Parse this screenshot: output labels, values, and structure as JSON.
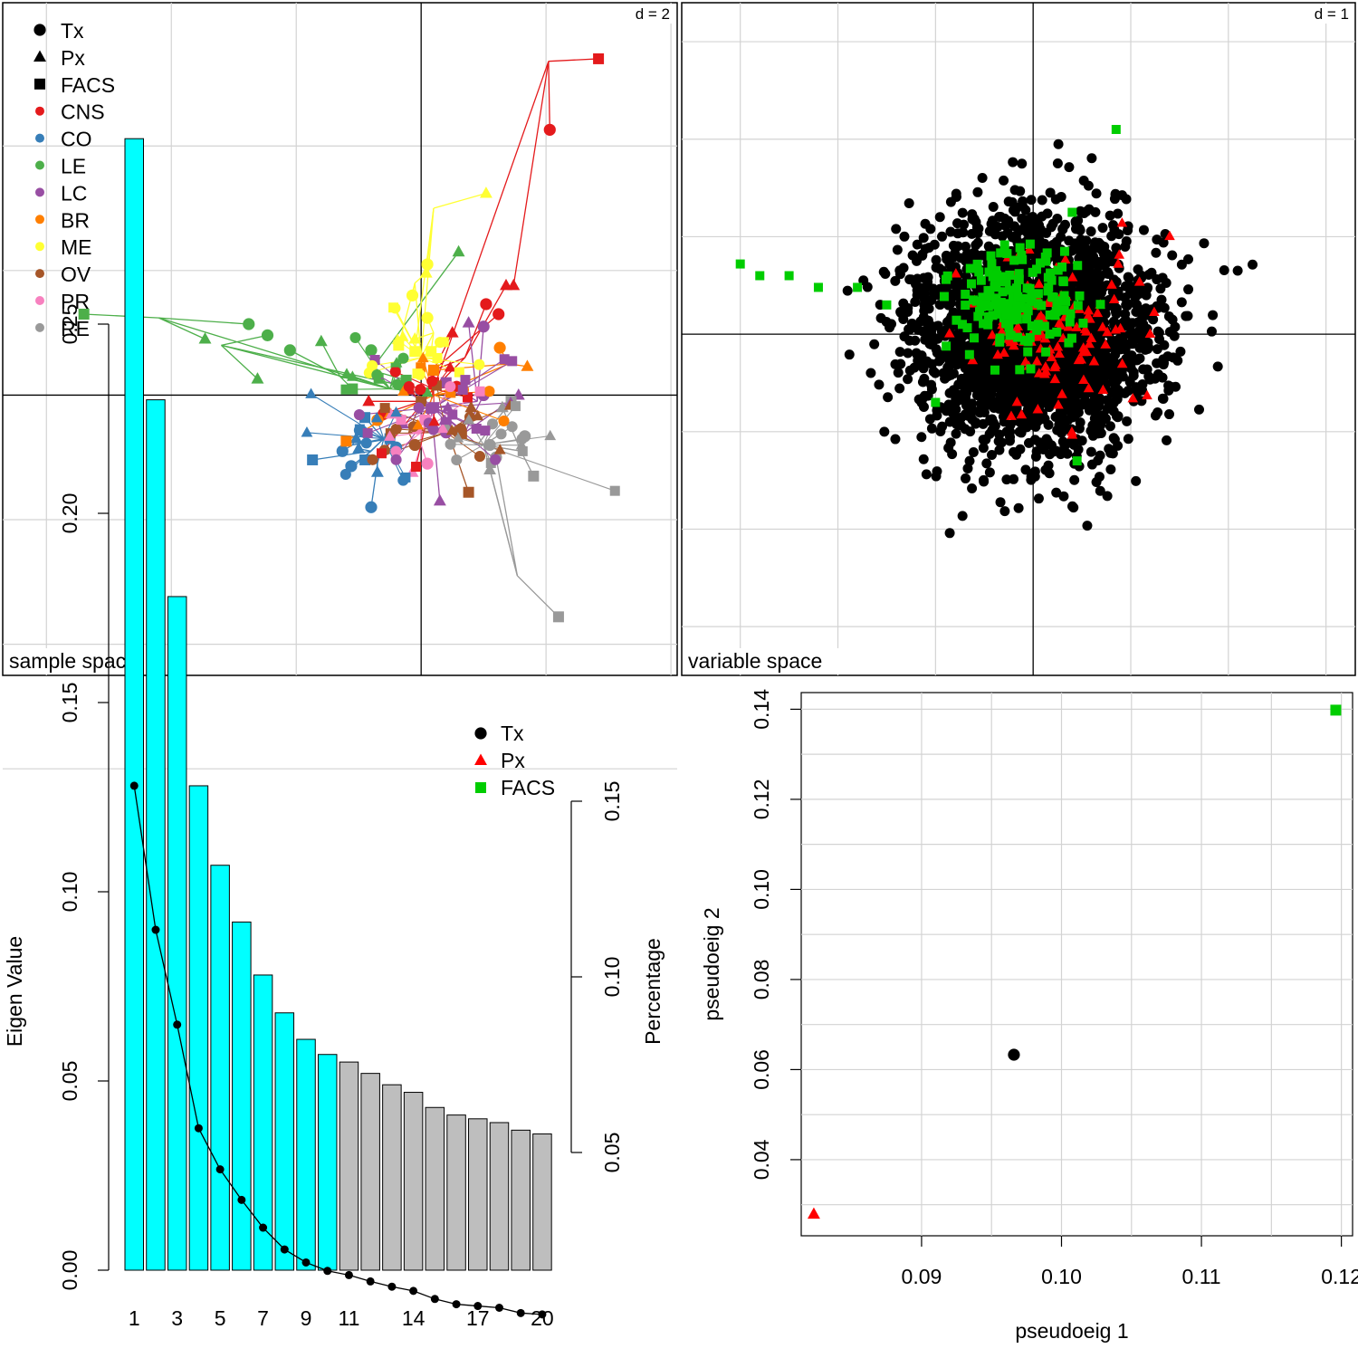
{
  "chart_data": [
    {
      "type": "scatter",
      "panel_label": "sample space",
      "scale_label": "d = 2",
      "grid": true,
      "x_range": [
        -3.35,
        2.05
      ],
      "y_range": [
        -2.25,
        3.15
      ],
      "gridlines": [
        -3,
        -2,
        -1,
        1,
        2
      ],
      "legend_placement": "top-left",
      "legend": {
        "shapes": [
          {
            "label": "Tx",
            "shape": "circle"
          },
          {
            "label": "Px",
            "shape": "triangle"
          },
          {
            "label": "FACS",
            "shape": "square"
          }
        ],
        "groups": [
          {
            "label": "CNS",
            "color": "#e41a1c"
          },
          {
            "label": "CO",
            "color": "#377eb8"
          },
          {
            "label": "LE",
            "color": "#4daf4a"
          },
          {
            "label": "LC",
            "color": "#984ea3"
          },
          {
            "label": "BR",
            "color": "#ff7f00"
          },
          {
            "label": "ME",
            "color": "#ffff33"
          },
          {
            "label": "OV",
            "color": "#a65628"
          },
          {
            "label": "PR",
            "color": "#f781bf"
          },
          {
            "label": "RE",
            "color": "#999999"
          }
        ]
      },
      "clusters": [
        {
          "group": "CNS",
          "color": "#e41a1c",
          "center": [
            0.1,
            0.05
          ],
          "points": [
            {
              "center": [
                1.02,
                2.68
              ],
              "tx": [
                1.03,
                2.13
              ],
              "px": [
                0.74,
                0.88
              ],
              "facs": [
                1.42,
                2.7
              ]
            },
            {
              "center": [
                0.35,
                0.3
              ],
              "tx": [
                0.52,
                0.73
              ],
              "px": [
                0.68,
                0.88
              ],
              "facs": [
                0.1,
                0.2
              ]
            },
            {
              "center": [
                0.1,
                0.2
              ],
              "tx": [
                0.62,
                0.65
              ],
              "px": [
                0.25,
                0.5
              ],
              "facs": [
                0.1,
                0.1
              ]
            },
            {
              "center": [
                0.0,
                -0.05
              ],
              "tx": [
                -0.3,
                -0.15
              ],
              "px": [
                -0.42,
                -0.05
              ],
              "facs": [
                -0.1,
                0.05
              ]
            }
          ]
        },
        {
          "group": "CO",
          "color": "#377eb8",
          "center": [
            -0.3,
            -0.35
          ],
          "points": [
            {
              "center": [
                -0.4,
                -0.45
              ],
              "tx": [
                -0.56,
                -0.57
              ],
              "px": [
                -0.5,
                -0.43
              ],
              "facs": [
                -0.87,
                -0.52
              ]
            },
            {
              "center": [
                -0.35,
                -0.55
              ],
              "tx": [
                -0.4,
                -0.9
              ],
              "px": [
                -0.35,
                -0.62
              ],
              "facs": [
                -0.45,
                -0.52
              ]
            },
            {
              "center": [
                -0.3,
                -0.35
              ],
              "tx": [
                -0.2,
                -0.42
              ],
              "px": [
                -0.45,
                -0.3
              ],
              "facs": [
                -0.45,
                -0.18
              ]
            },
            {
              "center": [
                -0.55,
                -0.4
              ],
              "tx": [
                -0.63,
                -0.45
              ],
              "px": [
                -0.52,
                -0.35
              ],
              "facs": [
                -0.25,
                -0.35
              ]
            }
          ]
        },
        {
          "group": "LE",
          "color": "#4daf4a",
          "center": [
            -0.25,
            0.05
          ],
          "points": [
            {
              "center": [
                -2.1,
                0.62
              ],
              "tx": [
                -1.38,
                0.57
              ],
              "px": [
                -1.73,
                0.45
              ],
              "facs": [
                -2.7,
                0.65
              ]
            },
            {
              "center": [
                -1.6,
                0.4
              ],
              "tx": [
                -1.23,
                0.48
              ],
              "px": [
                -1.31,
                0.13
              ],
              "facs": [
                -0.13,
                0.07
              ]
            },
            {
              "center": [
                -0.65,
                0.15
              ],
              "tx": [
                -1.05,
                0.36
              ],
              "px": [
                -0.8,
                0.43
              ],
              "facs": [
                -0.55,
                0.05
              ]
            },
            {
              "center": [
                -0.4,
                0.2
              ],
              "tx": [
                -0.4,
                0.36
              ],
              "px": [
                0.3,
                1.15
              ],
              "facs": [
                -0.12,
                0.12
              ]
            }
          ]
        },
        {
          "group": "LC",
          "color": "#984ea3",
          "center": [
            0.1,
            -0.1
          ],
          "points": [
            {
              "center": [
                0.45,
                -0.05
              ],
              "tx": [
                0.5,
                0.55
              ],
              "px": [
                0.38,
                0.58
              ],
              "facs": [
                0.2,
                0.1
              ]
            },
            {
              "center": [
                0.35,
                -0.3
              ],
              "tx": [
                0.5,
                0.0
              ],
              "px": [
                0.78,
                0.0
              ],
              "facs": [
                0.1,
                -0.1
              ]
            },
            {
              "center": [
                0.1,
                -0.3
              ],
              "tx": [
                0.2,
                -0.3
              ],
              "px": [
                0.15,
                -0.85
              ],
              "facs": [
                0.2,
                -0.22
              ]
            }
          ]
        },
        {
          "group": "BR",
          "color": "#ff7f00",
          "center": [
            0.1,
            0.0
          ],
          "points": [
            {
              "center": [
                0.7,
                0.25
              ],
              "tx": [
                0.63,
                0.38
              ],
              "px": [
                0.85,
                0.23
              ],
              "facs": [
                0.1,
                0.2
              ]
            },
            {
              "center": [
                -0.4,
                -0.25
              ],
              "tx": [
                -0.35,
                -0.2
              ],
              "px": [
                -0.25,
                -0.15
              ],
              "facs": [
                -0.6,
                -0.37
              ]
            }
          ]
        },
        {
          "group": "ME",
          "color": "#ffff33",
          "center": [
            0.0,
            0.3
          ],
          "points": [
            {
              "center": [
                0.1,
                1.5
              ],
              "tx": [
                0.05,
                1.05
              ],
              "px": [
                0.52,
                1.62
              ],
              "facs": [
                -0.05,
                0.35
              ]
            },
            {
              "center": [
                -0.05,
                0.9
              ],
              "tx": [
                -0.07,
                0.8
              ],
              "px": [
                0.04,
                0.98
              ],
              "facs": [
                -0.18,
                0.4
              ]
            },
            {
              "center": [
                0.1,
                0.5
              ],
              "tx": [
                0.05,
                0.62
              ],
              "px": [
                -0.05,
                0.45
              ],
              "facs": [
                0.08,
                0.35
              ]
            }
          ]
        },
        {
          "group": "OV",
          "color": "#a65628",
          "center": [
            0.2,
            -0.3
          ],
          "points": [
            {
              "center": [
                0.25,
                -0.4
              ],
              "tx": [
                0.3,
                -0.3
              ],
              "px": [
                0.4,
                -0.1
              ],
              "facs": [
                0.38,
                -0.78
              ]
            },
            {
              "center": [
                -0.1,
                -0.3
              ],
              "tx": [
                -0.05,
                -0.4
              ],
              "px": [
                -0.03,
                -0.25
              ],
              "facs": [
                0.0,
                -0.05
              ]
            }
          ]
        },
        {
          "group": "PR",
          "color": "#f781bf",
          "center": [
            0.0,
            -0.3
          ],
          "points": [
            {
              "center": [
                0.0,
                -0.4
              ],
              "tx": [
                0.05,
                -0.55
              ],
              "px": [
                -0.07,
                -0.62
              ],
              "facs": [
                0.03,
                -0.2
              ]
            }
          ]
        },
        {
          "group": "RE",
          "color": "#999999",
          "center": [
            0.5,
            -0.4
          ],
          "points": [
            {
              "center": [
                0.77,
                -1.45
              ],
              "tx": [
                0.6,
                -0.5
              ],
              "px": [
                0.55,
                -0.6
              ],
              "facs": [
                1.1,
                -1.78
              ]
            },
            {
              "center": [
                0.8,
                -0.45
              ],
              "tx": [
                0.83,
                -0.33
              ],
              "px": [
                0.65,
                -0.1
              ],
              "facs": [
                0.9,
                -0.65
              ]
            },
            {
              "center": [
                0.45,
                -0.4
              ],
              "tx": [
                0.55,
                -0.4
              ],
              "px": [
                0.2,
                -0.25
              ],
              "facs": [
                0.72,
                -0.05
              ]
            }
          ]
        }
      ]
    },
    {
      "type": "scatter",
      "panel_label": "variable space",
      "scale_label": "d = 1",
      "grid": true,
      "x_range": [
        -3.6,
        3.3
      ],
      "y_range": [
        -3.5,
        3.4
      ],
      "gridlines": [
        -3,
        -2,
        -1,
        1,
        2,
        3
      ],
      "series": [
        {
          "kind": "Tx",
          "shape": "circle",
          "color": "#000000",
          "center": [
            0.0,
            0.0
          ],
          "spread": 0.6,
          "count": 2600
        },
        {
          "kind": "Px",
          "shape": "triangle",
          "color": "#ff0000",
          "center": [
            0.3,
            0.0
          ],
          "spread": 0.42,
          "count": 120
        },
        {
          "kind": "FACS",
          "shape": "square",
          "color": "#00cd00",
          "center": [
            -0.2,
            0.3
          ],
          "spread": 0.3,
          "count": 160,
          "outliers": [
            [
              -3.0,
              0.72
            ],
            [
              -2.8,
              0.6
            ],
            [
              -2.5,
              0.6
            ],
            [
              -2.2,
              0.48
            ],
            [
              -1.8,
              0.48
            ],
            [
              -1.5,
              0.3
            ],
            [
              0.85,
              2.1
            ],
            [
              0.4,
              1.25
            ],
            [
              -1.0,
              -0.7
            ],
            [
              0.45,
              -1.3
            ]
          ]
        }
      ]
    },
    {
      "type": "bar",
      "xlabel": "",
      "ylabel": "Eigen Value",
      "ylabel2": "Percentage",
      "ylim": [
        0,
        0.3
      ],
      "yticks": [
        "0.00",
        "0.05",
        "0.10",
        "0.15",
        "0.20",
        "0.25"
      ],
      "yticks2": [
        "0.05",
        "0.10",
        "0.15"
      ],
      "categories": [
        "1",
        "2",
        "3",
        "4",
        "5",
        "6",
        "7",
        "8",
        "9",
        "10",
        "11",
        "12",
        "13",
        "14",
        "15",
        "16",
        "17",
        "18",
        "19",
        "20"
      ],
      "xtick_labels": [
        "1",
        "3",
        "5",
        "7",
        "9",
        "11",
        "14",
        "17",
        "20"
      ],
      "values": [
        0.299,
        0.23,
        0.178,
        0.128,
        0.107,
        0.092,
        0.078,
        0.068,
        0.061,
        0.057,
        0.055,
        0.052,
        0.049,
        0.047,
        0.043,
        0.041,
        0.04,
        0.039,
        0.037,
        0.036
      ],
      "highlight_count": 10,
      "bar_colors": {
        "selected": "#00ffff",
        "other": "#bebebe"
      },
      "percentage_series": {
        "name": "",
        "values": [
          0.1544,
          0.1134,
          0.0864,
          0.0569,
          0.0452,
          0.0365,
          0.0286,
          0.0224,
          0.0187,
          0.0163,
          0.0151,
          0.0133,
          0.0118,
          0.0106,
          0.0083,
          0.0068,
          0.0063,
          0.0058,
          0.0043,
          0.0039
        ]
      },
      "legend_placement": "top-right",
      "legend": [
        {
          "label": "Tx",
          "shape": "circle",
          "color": "#000000"
        },
        {
          "label": "Px",
          "shape": "triangle",
          "color": "#ff0000"
        },
        {
          "label": "FACS",
          "shape": "square",
          "color": "#00cd00"
        }
      ]
    },
    {
      "type": "scatter",
      "xlabel": "pseudoeig 1",
      "ylabel": "pseudoeig 2",
      "grid": true,
      "xlim": [
        0.0814,
        0.1208
      ],
      "ylim": [
        0.0231,
        0.1437
      ],
      "xticks": [
        "0.09",
        "0.10",
        "0.11",
        "0.12"
      ],
      "yticks": [
        "0.04",
        "0.06",
        "0.08",
        "0.10",
        "0.12",
        "0.14"
      ],
      "points": [
        {
          "name": "Tx",
          "x": 0.0966,
          "y": 0.0633,
          "shape": "circle",
          "color": "#000000"
        },
        {
          "name": "Px",
          "x": 0.0823,
          "y": 0.0279,
          "shape": "triangle",
          "color": "#ff0000"
        },
        {
          "name": "FACS",
          "x": 0.1196,
          "y": 0.1398,
          "shape": "square",
          "color": "#00cd00"
        }
      ]
    }
  ]
}
